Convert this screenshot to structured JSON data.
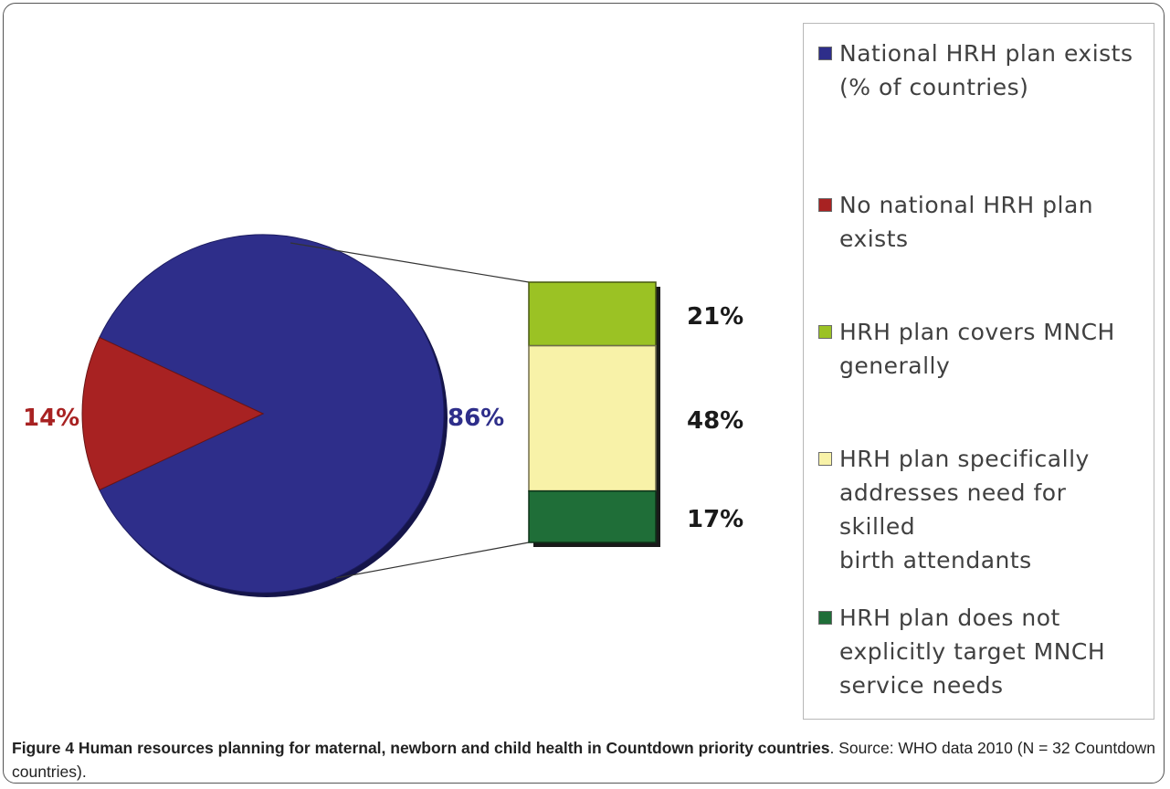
{
  "chart_data": {
    "type": "bar-of-pie",
    "pie": [
      {
        "label": "National HRH plan exists (% of countries)",
        "value": 86,
        "display": "86%",
        "color": "#2e2e8a"
      },
      {
        "label": "No national HRH plan exists",
        "value": 14,
        "display": "14%",
        "color": "#a82222"
      }
    ],
    "stacked_bar": [
      {
        "label": "HRH plan covers MNCH generally",
        "value": 21,
        "display": "21%",
        "color": "#9bc224"
      },
      {
        "label": "HRH plan specifically addresses need for skilled birth attendants",
        "value": 48,
        "display": "48%",
        "color": "#f8f2a8"
      },
      {
        "label": "HRH plan does not explicitly target MNCH service needs",
        "value": 17,
        "display": "17%",
        "color": "#1f6e38"
      }
    ],
    "legend": [
      {
        "label": "National HRH plan exists (% of countries)",
        "lines": [
          "National HRH plan exists",
          "(% of countries)"
        ],
        "color": "#2e2e8a"
      },
      {
        "label": "No national HRH plan exists",
        "lines": [
          "No national HRH plan",
          "exists"
        ],
        "color": "#a82222"
      },
      {
        "label": "HRH plan covers MNCH generally",
        "lines": [
          "HRH plan covers MNCH",
          "generally"
        ],
        "color": "#9bc224"
      },
      {
        "label": "HRH plan specifically addresses need for skilled birth attendants",
        "lines": [
          "HRH plan specifically",
          "addresses need for skilled",
          "birth attendants"
        ],
        "color": "#f8f2a8"
      },
      {
        "label": "HRH plan does not explicitly target MNCH service needs",
        "lines": [
          "HRH plan does not",
          "explicitly target MNCH",
          "service needs"
        ],
        "color": "#1f6e38"
      }
    ],
    "legend_position": "right"
  },
  "caption": {
    "label": "Figure 4 Human resources planning for maternal, newborn and child health in Countdown priority countries",
    "text": ". Source: WHO data 2010 (N = 32 Countdown countries)."
  }
}
